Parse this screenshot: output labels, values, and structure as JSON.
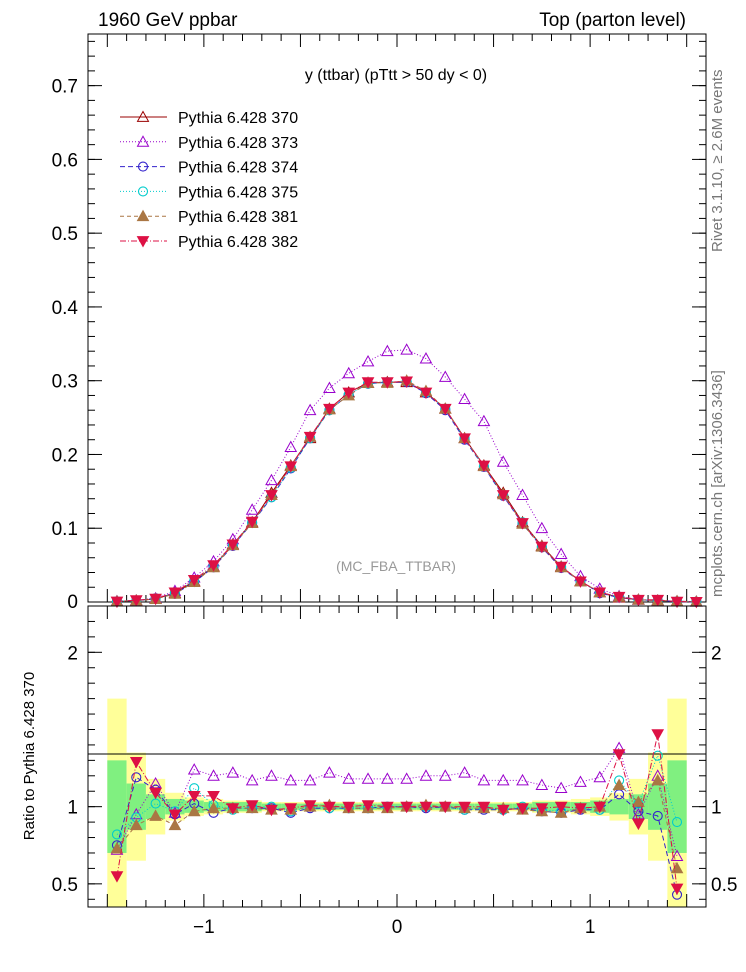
{
  "header": {
    "left": "1960 GeV ppbar",
    "right": "Top (parton level)",
    "side_top": "Rivet 3.1.10, ≥ 2.6M events",
    "side_bottom": "mcplots.cern.ch [arXiv:1306.3436]"
  },
  "chart_data": [
    {
      "type": "line",
      "title": "y (ttbar) (pTtt > 50 dy < 0)",
      "watermark": "(MC_FBA_TTBAR)",
      "xlim": [
        -1.6,
        1.6
      ],
      "ylim": [
        0,
        0.77
      ],
      "yticks": [
        0.1,
        0.2,
        0.3,
        0.4,
        0.5,
        0.6,
        0.7
      ],
      "ytick_labels": [
        "0.1",
        "0.2",
        "0.3",
        "0.4",
        "0.5",
        "0.6",
        "0.7"
      ],
      "bottom_tick_label": "0",
      "x": [
        -1.45,
        -1.35,
        -1.25,
        -1.15,
        -1.05,
        -0.95,
        -0.85,
        -0.75,
        -0.65,
        -0.55,
        -0.45,
        -0.35,
        -0.25,
        -0.15,
        -0.05,
        0.05,
        0.15,
        0.25,
        0.35,
        0.45,
        0.55,
        0.65,
        0.75,
        0.85,
        0.95,
        1.05,
        1.15,
        1.25,
        1.35,
        1.45,
        1.55
      ],
      "legend_position": "top-left",
      "series": [
        {
          "name": "Pythia 6.428 370",
          "color": "#990000",
          "marker": "triangle-open",
          "dash": "",
          "values": [
            0.001,
            0.002,
            0.004,
            0.012,
            0.028,
            0.048,
            0.078,
            0.108,
            0.148,
            0.185,
            0.222,
            0.262,
            0.284,
            0.297,
            0.298,
            0.298,
            0.284,
            0.262,
            0.222,
            0.185,
            0.148,
            0.108,
            0.076,
            0.048,
            0.028,
            0.013,
            0.006,
            0.003,
            0.002,
            0.001,
            0.0005
          ]
        },
        {
          "name": "Pythia 6.428 373",
          "color": "#9900cc",
          "marker": "triangle-open",
          "dash": "1,2",
          "values": [
            0.001,
            0.002,
            0.005,
            0.015,
            0.033,
            0.055,
            0.085,
            0.125,
            0.165,
            0.21,
            0.26,
            0.29,
            0.31,
            0.326,
            0.34,
            0.342,
            0.33,
            0.305,
            0.275,
            0.245,
            0.19,
            0.145,
            0.1,
            0.065,
            0.035,
            0.018,
            0.008,
            0.003,
            0.002,
            0.0007,
            0.0003
          ]
        },
        {
          "name": "Pythia 6.428 374",
          "color": "#3322cc",
          "marker": "circle-open",
          "dash": "5,3",
          "values": [
            0.001,
            0.002,
            0.005,
            0.011,
            0.027,
            0.047,
            0.076,
            0.107,
            0.142,
            0.181,
            0.222,
            0.26,
            0.281,
            0.296,
            0.298,
            0.298,
            0.283,
            0.26,
            0.22,
            0.183,
            0.144,
            0.106,
            0.074,
            0.046,
            0.028,
            0.012,
            0.006,
            0.003,
            0.002,
            0.0005,
            0.0003
          ]
        },
        {
          "name": "Pythia 6.428 375",
          "color": "#00cccc",
          "marker": "circle-open",
          "dash": "1,2",
          "values": [
            0.001,
            0.002,
            0.004,
            0.013,
            0.029,
            0.049,
            0.077,
            0.108,
            0.142,
            0.182,
            0.222,
            0.26,
            0.281,
            0.296,
            0.298,
            0.299,
            0.284,
            0.262,
            0.222,
            0.184,
            0.145,
            0.108,
            0.075,
            0.048,
            0.028,
            0.013,
            0.007,
            0.003,
            0.002,
            0.0009,
            0.0004
          ]
        },
        {
          "name": "Pythia 6.428 381",
          "color": "#aa7744",
          "marker": "triangle-filled",
          "dash": "4,3",
          "values": [
            0.0007,
            0.002,
            0.004,
            0.011,
            0.027,
            0.047,
            0.077,
            0.107,
            0.145,
            0.184,
            0.224,
            0.261,
            0.28,
            0.297,
            0.297,
            0.3,
            0.286,
            0.262,
            0.222,
            0.184,
            0.146,
            0.106,
            0.075,
            0.047,
            0.028,
            0.013,
            0.007,
            0.003,
            0.002,
            0.001,
            0.0003
          ]
        },
        {
          "name": "Pythia 6.428 382",
          "color": "#dd1144",
          "marker": "triangle-down-filled",
          "dash": "6,2,1,2",
          "values": [
            0.0006,
            0.0025,
            0.0045,
            0.013,
            0.03,
            0.05,
            0.078,
            0.109,
            0.145,
            0.184,
            0.224,
            0.262,
            0.284,
            0.298,
            0.298,
            0.299,
            0.284,
            0.262,
            0.222,
            0.185,
            0.145,
            0.107,
            0.075,
            0.048,
            0.028,
            0.013,
            0.007,
            0.003,
            0.003,
            0.0005,
            0.0002
          ]
        }
      ]
    },
    {
      "type": "line",
      "ylabel": "Ratio to Pythia 6.428 370",
      "xlim": [
        -1.6,
        1.6
      ],
      "ylim": [
        0.35,
        2.3
      ],
      "yticks": [
        0.5,
        1,
        2
      ],
      "ytick_labels": [
        "0.5",
        "1",
        "2"
      ],
      "xticks": [
        -1,
        0,
        1
      ],
      "xtick_labels": [
        "−1",
        "0",
        "1"
      ],
      "x": [
        -1.45,
        -1.35,
        -1.25,
        -1.15,
        -1.05,
        -0.95,
        -0.85,
        -0.75,
        -0.65,
        -0.55,
        -0.45,
        -0.35,
        -0.25,
        -0.15,
        -0.05,
        0.05,
        0.15,
        0.25,
        0.35,
        0.45,
        0.55,
        0.65,
        0.75,
        0.85,
        0.95,
        1.05,
        1.15,
        1.25,
        1.35,
        1.45
      ],
      "band_inner": [
        0.3,
        0.15,
        0.08,
        0.05,
        0.04,
        0.03,
        0.03,
        0.03,
        0.02,
        0.02,
        0.02,
        0.02,
        0.02,
        0.02,
        0.02,
        0.02,
        0.02,
        0.02,
        0.02,
        0.02,
        0.02,
        0.02,
        0.03,
        0.03,
        0.03,
        0.04,
        0.05,
        0.08,
        0.15,
        0.3
      ],
      "band_outer": [
        0.7,
        0.35,
        0.18,
        0.09,
        0.06,
        0.05,
        0.04,
        0.04,
        0.03,
        0.03,
        0.03,
        0.03,
        0.03,
        0.03,
        0.03,
        0.03,
        0.03,
        0.03,
        0.03,
        0.03,
        0.03,
        0.03,
        0.04,
        0.04,
        0.05,
        0.06,
        0.09,
        0.18,
        0.35,
        0.7
      ],
      "series": [
        {
          "name": "Pythia 6.428 373",
          "color": "#9900cc",
          "marker": "triangle-open",
          "dash": "1,2",
          "values": [
            0.72,
            0.95,
            1.15,
            0.96,
            1.24,
            1.2,
            1.22,
            1.17,
            1.2,
            1.17,
            1.17,
            1.22,
            1.18,
            1.18,
            1.18,
            1.18,
            1.2,
            1.2,
            1.22,
            1.17,
            1.17,
            1.17,
            1.14,
            1.12,
            1.16,
            1.19,
            1.38,
            0.95,
            1.2,
            0.68
          ]
        },
        {
          "name": "Pythia 6.428 374",
          "color": "#3322cc",
          "marker": "circle-open",
          "dash": "5,3",
          "values": [
            0.75,
            1.19,
            1.11,
            0.95,
            1.02,
            0.96,
            0.99,
            0.99,
            0.99,
            0.96,
            0.99,
            0.99,
            0.99,
            0.99,
            1.0,
            1.0,
            0.99,
            1.0,
            0.98,
            0.98,
            0.98,
            0.99,
            0.97,
            0.96,
            0.98,
            0.98,
            1.08,
            0.97,
            0.94,
            0.43
          ]
        },
        {
          "name": "Pythia 6.428 375",
          "color": "#00cccc",
          "marker": "circle-open",
          "dash": "1,2",
          "values": [
            0.82,
            0.93,
            1.02,
            0.97,
            1.12,
            1.01,
            0.98,
            1.0,
            1.0,
            0.97,
            1.0,
            0.99,
            0.99,
            0.99,
            1.0,
            1.0,
            1.0,
            1.0,
            0.98,
            0.99,
            0.98,
            1.0,
            0.98,
            0.97,
            0.99,
            0.98,
            1.17,
            1.02,
            1.33,
            0.9
          ]
        },
        {
          "name": "Pythia 6.428 381",
          "color": "#aa7744",
          "marker": "triangle-filled",
          "dash": "4,3",
          "values": [
            0.73,
            0.88,
            0.94,
            0.88,
            0.97,
            0.99,
            0.99,
            0.99,
            0.98,
            0.98,
            1.0,
            1.01,
            0.99,
            0.99,
            0.99,
            1.0,
            1.01,
            1.0,
            0.99,
            0.99,
            0.99,
            0.98,
            0.97,
            0.96,
            0.99,
            1.0,
            1.14,
            1.03,
            1.17,
            0.6
          ]
        },
        {
          "name": "Pythia 6.428 382",
          "color": "#dd1144",
          "marker": "triangle-down-filled",
          "dash": "6,2,1,2",
          "values": [
            0.55,
            1.29,
            1.09,
            0.95,
            1.07,
            1.07,
            0.99,
            1.01,
            0.98,
            0.99,
            1.01,
            1.0,
            1.0,
            1.01,
            1.0,
            1.0,
            1.0,
            1.0,
            1.0,
            1.0,
            0.98,
            0.99,
            0.99,
            1.0,
            0.99,
            1.0,
            1.34,
            0.89,
            1.47,
            0.47
          ]
        }
      ]
    }
  ]
}
